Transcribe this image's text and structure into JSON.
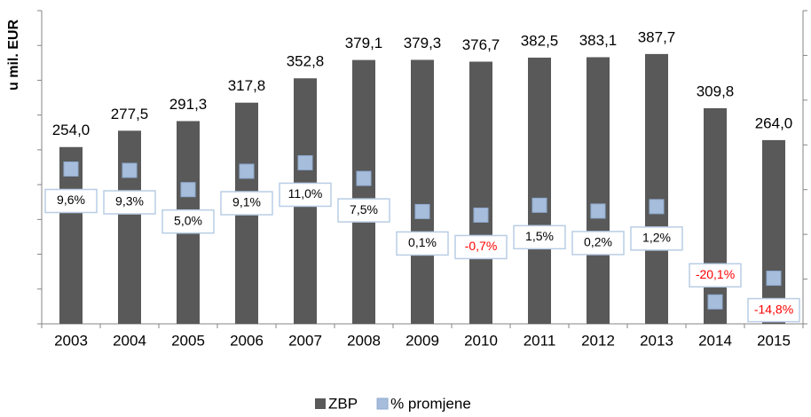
{
  "chart_data": {
    "type": "bar",
    "y_axis_label": "u mil. EUR",
    "categories": [
      "2003",
      "2004",
      "2005",
      "2006",
      "2007",
      "2008",
      "2009",
      "2010",
      "2011",
      "2012",
      "2013",
      "2014",
      "2015"
    ],
    "series": [
      {
        "name": "ZBP",
        "type": "bar",
        "color": "#595959",
        "values": [
          254.0,
          277.5,
          291.3,
          317.8,
          352.8,
          379.1,
          379.3,
          376.7,
          382.5,
          383.1,
          387.7,
          309.8,
          264.0
        ],
        "value_labels": [
          "254,0",
          "277,5",
          "291,3",
          "317,8",
          "352,8",
          "379,1",
          "379,3",
          "376,7",
          "382,5",
          "383,1",
          "387,7",
          "309,8",
          "264,0"
        ]
      },
      {
        "name": "% promjene",
        "type": "line",
        "axis": "y2",
        "color": "#a6bddb",
        "values": [
          9.6,
          9.3,
          5.0,
          9.1,
          11.0,
          7.5,
          0.1,
          -0.7,
          1.5,
          0.2,
          1.2,
          -20.1,
          -14.8
        ],
        "value_labels": [
          "9,6%",
          "9,3%",
          "5,0%",
          "9,1%",
          "11,0%",
          "7,5%",
          "0,1%",
          "-0,7%",
          "1,5%",
          "0,2%",
          "1,2%",
          "-20,1%",
          "-14,8%"
        ],
        "negative_label_color": "#ff0000"
      }
    ],
    "ylim": [
      0,
      450
    ],
    "yticks": [
      0,
      50,
      100,
      150,
      200,
      250,
      300,
      350,
      400,
      450
    ],
    "y2lim": [
      -25,
      45
    ],
    "y2ticks": [
      -25,
      -15,
      -5,
      5,
      15,
      25,
      35,
      45
    ],
    "legend": "bottom"
  }
}
